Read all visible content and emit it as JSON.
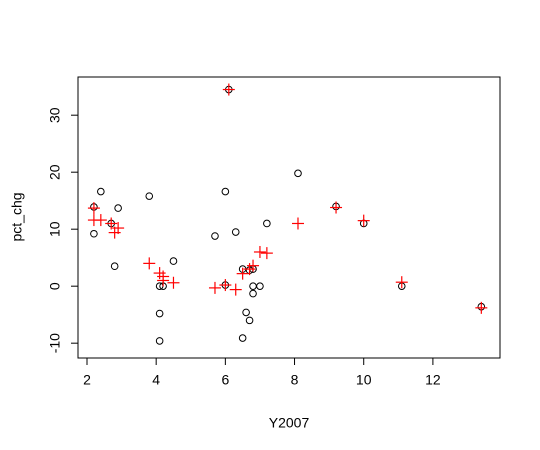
{
  "chart_data": {
    "type": "scatter",
    "xlabel": "Y2007",
    "ylabel": "pct_chg",
    "xlim": [
      1.74,
      13.94
    ],
    "ylim": [
      -12.6,
      36.7
    ],
    "xticks": [
      2,
      4,
      6,
      8,
      10,
      12
    ],
    "yticks": [
      -10,
      0,
      10,
      20,
      30
    ],
    "series": [
      {
        "marker": "circle",
        "color": "#000000",
        "x": [
          2.2,
          2.2,
          2.4,
          2.7,
          2.8,
          2.9,
          3.8,
          4.1,
          4.2,
          4.1,
          4.1,
          4.5,
          5.7,
          6.0,
          6.0,
          6.1,
          6.3,
          6.5,
          6.5,
          6.6,
          6.7,
          6.7,
          6.8,
          6.8,
          6.8,
          7.0,
          7.2,
          8.1,
          9.2,
          10.0,
          11.1,
          13.4
        ],
        "values": [
          13.9,
          9.2,
          16.6,
          11.0,
          3.5,
          13.7,
          15.8,
          0,
          0,
          -4.8,
          -9.6,
          4.4,
          8.8,
          16.6,
          0.2,
          34.5,
          9.5,
          3.0,
          -9.1,
          -4.6,
          -6.0,
          2.8,
          3.0,
          -1.3,
          0,
          0,
          11.0,
          19.8,
          14.0,
          11.0,
          0,
          -3.6
        ]
      },
      {
        "marker": "plus",
        "color": "#ff0000",
        "x": [
          2.2,
          2.2,
          2.4,
          2.7,
          2.8,
          2.9,
          3.8,
          4.1,
          4.2,
          4.2,
          4.5,
          5.7,
          6.0,
          6.1,
          6.3,
          6.5,
          6.7,
          6.8,
          7.0,
          7.2,
          8.1,
          9.2,
          10.0,
          11.1,
          13.4
        ],
        "values": [
          13.7,
          11.6,
          11.6,
          11.0,
          9.4,
          10.2,
          4.0,
          2.3,
          1.7,
          1.0,
          0.6,
          -0.3,
          0.2,
          34.5,
          -0.6,
          2.2,
          3.0,
          3.6,
          6.0,
          5.8,
          11.0,
          13.8,
          11.5,
          0.7,
          -3.8
        ]
      }
    ]
  }
}
